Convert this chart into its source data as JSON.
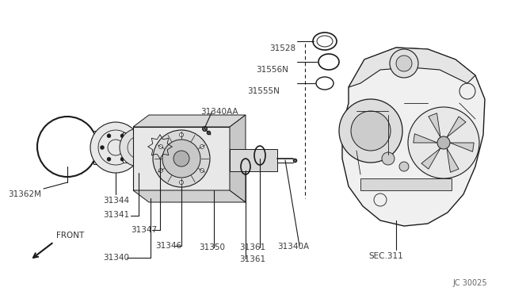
{
  "bg_color": "#ffffff",
  "line_color": "#1a1a1a",
  "fig_width": 6.4,
  "fig_height": 3.72,
  "diagram_code": "JC 30025",
  "sec_label": "SEC.311",
  "front_label": "FRONT"
}
